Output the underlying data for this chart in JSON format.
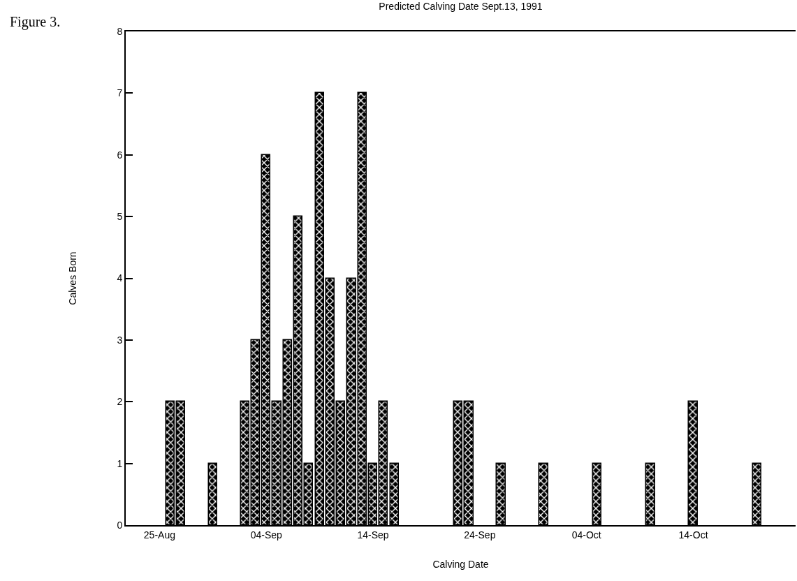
{
  "chart_data": {
    "type": "bar",
    "title": "Predicted Calving Date Sept.13, 1991",
    "xlabel": "Calving Date",
    "ylabel": "Calves Born",
    "annotations": [
      "Figure 3."
    ],
    "x": [
      "1991-08-26",
      "1991-08-27",
      "1991-08-30",
      "1991-09-02",
      "1991-09-03",
      "1991-09-04",
      "1991-09-05",
      "1991-09-06",
      "1991-09-07",
      "1991-09-08",
      "1991-09-09",
      "1991-09-10",
      "1991-09-11",
      "1991-09-12",
      "1991-09-13",
      "1991-09-14",
      "1991-09-15",
      "1991-09-16",
      "1991-09-22",
      "1991-09-23",
      "1991-09-26",
      "1991-09-30",
      "1991-10-05",
      "1991-10-10",
      "1991-10-14",
      "1991-10-20"
    ],
    "values": [
      2,
      2,
      1,
      2,
      3,
      6,
      2,
      3,
      5,
      1,
      7,
      4,
      2,
      4,
      7,
      1,
      2,
      1,
      2,
      2,
      1,
      1,
      1,
      1,
      2,
      1
    ],
    "color": "#000000",
    "xlim": [
      "1991-08-21T20:00",
      "1991-10-23T14:00"
    ],
    "xticks": [
      {
        "value": "1991-08-25",
        "label": "25-Aug"
      },
      {
        "value": "1991-09-04",
        "label": "04-Sep"
      },
      {
        "value": "1991-09-14",
        "label": "14-Sep"
      },
      {
        "value": "1991-09-24",
        "label": "24-Sep"
      },
      {
        "value": "1991-10-04",
        "label": "04-Oct"
      },
      {
        "value": "1991-10-14",
        "label": "14-Oct"
      }
    ],
    "ylim": [
      0,
      8
    ],
    "yticks": [
      0,
      1,
      2,
      3,
      4,
      5,
      6,
      7,
      8
    ],
    "grid": false,
    "legend": false
  }
}
